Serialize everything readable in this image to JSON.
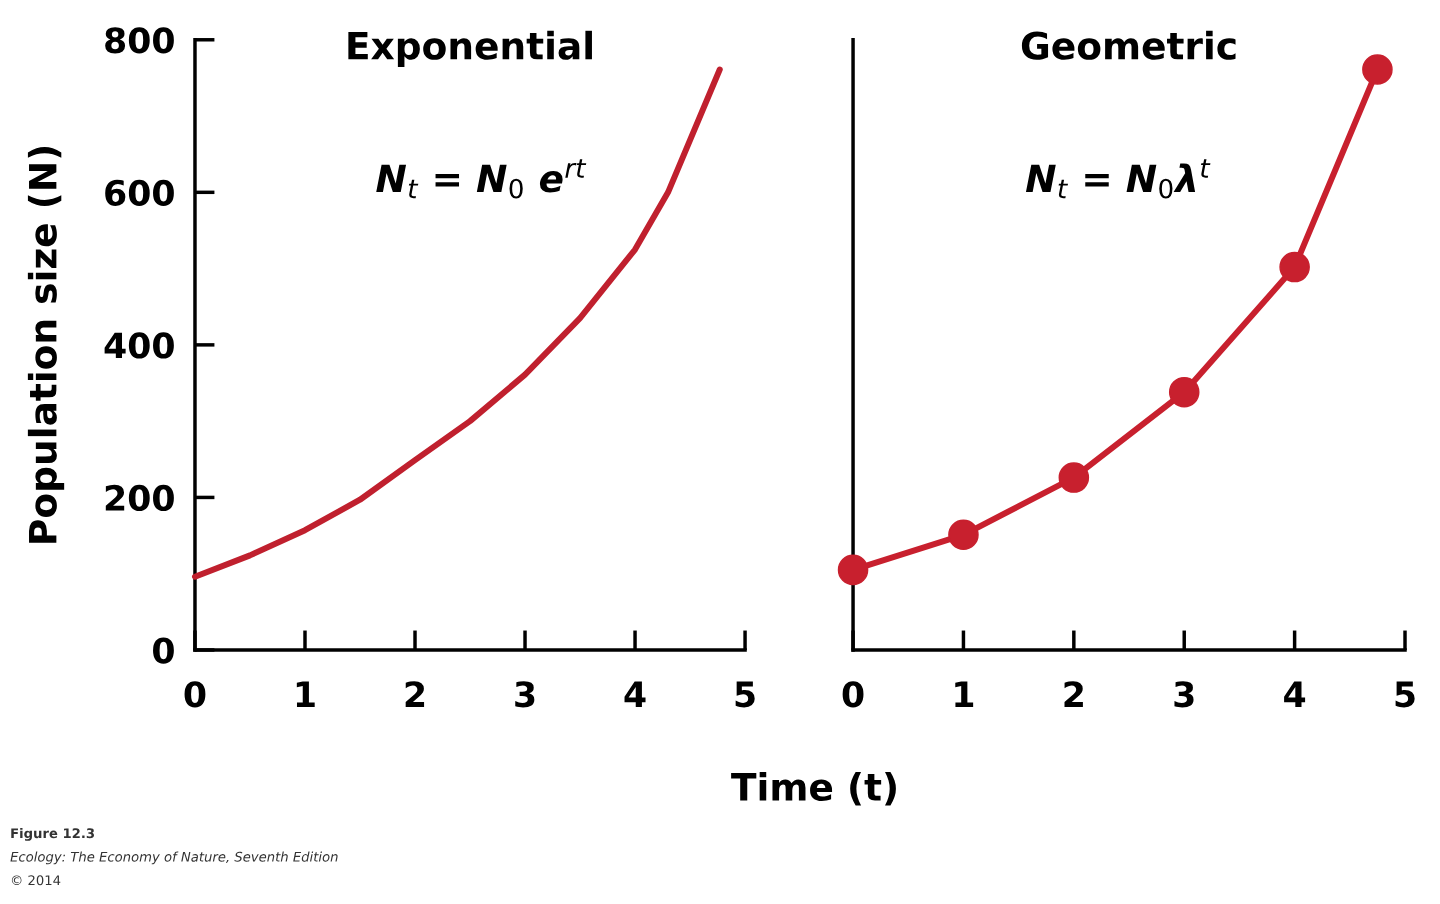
{
  "chart_data": [
    {
      "type": "line",
      "title": "Exponential",
      "xlabel": "Time (t)",
      "ylabel": "Population size (N)",
      "x": [
        0,
        0.5,
        1,
        1.5,
        2,
        2.5,
        3,
        3.5,
        4,
        4.3,
        4.77
      ],
      "series": [
        {
          "color": "#c0202e",
          "values": [
            96,
            124,
            157,
            197,
            249,
            300,
            361,
            435,
            525,
            600,
            761
          ]
        }
      ],
      "xlim": [
        0,
        5
      ],
      "xticks": [
        0,
        1,
        2,
        3,
        4,
        5
      ],
      "ylim": [
        0,
        800
      ],
      "yticks": [
        0,
        200,
        400,
        600,
        800
      ],
      "marker": "none",
      "line_style": "solid",
      "grid": false,
      "legend": false,
      "annotations": [
        "N$_{t}$ = N$_{0}$ e$^{rt}$",
        "Figure 12.3",
        "Ecology: The Economy of Nature, Seventh Edition",
        "© 2014"
      ]
    },
    {
      "type": "line",
      "title": "Geometric",
      "x": [
        0,
        1,
        2,
        3,
        4,
        4.75
      ],
      "series": [
        {
          "color": "#c8202e",
          "values": [
            105,
            151,
            226,
            338,
            502,
            761
          ]
        }
      ],
      "xlim": [
        0,
        5
      ],
      "xticks": [
        0,
        1,
        2,
        3,
        4,
        5
      ],
      "ylim": [
        0,
        800
      ],
      "tick_labels": "x",
      "marker": "circle",
      "line_style": "solid",
      "grid": false,
      "legend": false,
      "annotations": [
        "N$_{t}$ = N$_{0}$λ$^{t}$"
      ]
    }
  ]
}
